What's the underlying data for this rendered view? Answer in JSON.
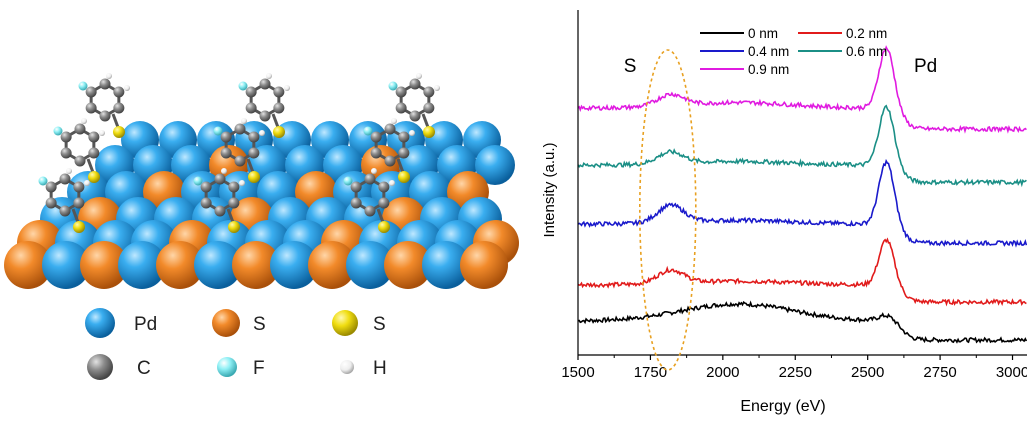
{
  "structure": {
    "legend": [
      {
        "label": "Pd",
        "color": "#1f93d8"
      },
      {
        "label": "S",
        "color": "#ef7d1c"
      },
      {
        "label": "S",
        "color": "#e6d200"
      },
      {
        "label": "C",
        "color": "#8a8a8a"
      },
      {
        "label": "F",
        "color": "#7fe3ea"
      },
      {
        "label": "H",
        "color": "#f2f2f2"
      }
    ]
  },
  "chart_data": {
    "type": "line",
    "xlabel": "Energy (eV)",
    "ylabel": "Intensity (a.u.)",
    "xlim": [
      1500,
      3050
    ],
    "xticks": [
      1500,
      1750,
      2000,
      2250,
      2500,
      2750,
      3000
    ],
    "y_ticks_shown": false,
    "legend_position": "top",
    "annotations": [
      {
        "text": "S",
        "x": 1680
      },
      {
        "text": "Pd",
        "x": 2700
      }
    ],
    "highlight": {
      "type": "dashed-ellipse",
      "x_center": 1810,
      "color": "#e8a020"
    },
    "series": [
      {
        "name": "0 nm",
        "color": "#000000",
        "offset": 0,
        "baseline": 1.0,
        "s_peak": 0.0,
        "pd_peak": 0.3,
        "broad_bump": 0.9
      },
      {
        "name": "0.2 nm",
        "color": "#e11b1b",
        "offset": 2.0,
        "baseline": 0.9,
        "s_peak": 0.7,
        "pd_peak": 2.4,
        "broad_bump": 0.2
      },
      {
        "name": "0.4 nm",
        "color": "#1a1acb",
        "offset": 5.1,
        "baseline": 1.0,
        "s_peak": 0.9,
        "pd_peak": 3.3,
        "broad_bump": 0.2
      },
      {
        "name": "0.6 nm",
        "color": "#1b8f86",
        "offset": 8.3,
        "baseline": 0.9,
        "s_peak": 0.6,
        "pd_peak": 3.1,
        "broad_bump": 0.2
      },
      {
        "name": "0.9 nm",
        "color": "#e01be0",
        "offset": 11.1,
        "baseline": 1.1,
        "s_peak": 0.6,
        "pd_peak": 3.2,
        "broad_bump": 0.3
      }
    ]
  }
}
